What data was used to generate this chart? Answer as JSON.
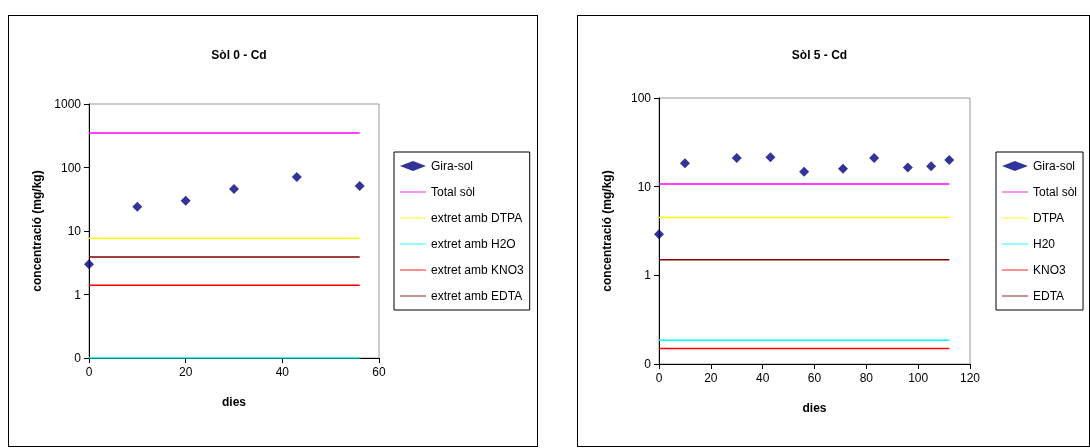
{
  "chart_data": [
    {
      "type": "scatter",
      "title": "Sòl 0 - Cd",
      "xlabel": "dies",
      "ylabel": "concentració (mg/kg)",
      "log": "y",
      "grid": false,
      "legend": "right",
      "xlim": [
        0,
        60
      ],
      "xticks": [
        0,
        20,
        40,
        60
      ],
      "ylim": [
        0.1,
        1000
      ],
      "yticks": [
        {
          "value": 0.1,
          "label": "0"
        },
        1,
        10,
        100,
        1000
      ],
      "series": [
        {
          "name": "Gira-sol",
          "type": "scatter",
          "marker": "diamond",
          "color": "#000080",
          "x": [
            0,
            10,
            20,
            30,
            43,
            56
          ],
          "values": [
            3,
            24,
            30,
            46,
            71,
            51
          ]
        },
        {
          "name": "Total sòl",
          "type": "line",
          "marker": "none",
          "color": "#ff00ff",
          "x": [
            0,
            56
          ],
          "values": [
            350,
            350
          ]
        },
        {
          "name": "extret amb DTPA",
          "type": "line",
          "marker": "none",
          "color": "#ffff00",
          "x": [
            0,
            56
          ],
          "values": [
            7.7,
            7.7
          ]
        },
        {
          "name": "extret amb H2O",
          "type": "line",
          "marker": "none",
          "color": "#00ffff",
          "x": [
            0,
            56
          ],
          "values": [
            0.1,
            0.1
          ]
        },
        {
          "name": "extret amb KNO3",
          "type": "line",
          "marker": "none",
          "color": "#ff0000",
          "x": [
            0,
            56
          ],
          "values": [
            1.4,
            1.4
          ]
        },
        {
          "name": "extret amb EDTA",
          "type": "line",
          "marker": "none",
          "color": "#800000",
          "x": [
            0,
            56
          ],
          "values": [
            3.9,
            3.9
          ]
        }
      ]
    },
    {
      "type": "scatter",
      "title": "Sòl 5 - Cd",
      "xlabel": "dies",
      "ylabel": "concentració (mg/kg)",
      "log": "y",
      "grid": false,
      "legend": "right",
      "xlim": [
        0,
        120
      ],
      "xticks": [
        0,
        20,
        40,
        60,
        80,
        100,
        120
      ],
      "ylim": [
        0.1,
        100
      ],
      "yticks": [
        {
          "value": 0.1,
          "label": "0"
        },
        1,
        10,
        100
      ],
      "series": [
        {
          "name": "Gira-sol",
          "type": "scatter",
          "marker": "diamond",
          "color": "#000080",
          "x": [
            0,
            10,
            30,
            43,
            56,
            71,
            83,
            96,
            105,
            112
          ],
          "values": [
            2.9,
            18.4,
            21,
            21.5,
            14.7,
            15.9,
            21,
            16.4,
            17,
            20
          ]
        },
        {
          "name": "Total sòl",
          "type": "line",
          "marker": "none",
          "color": "#ff00ff",
          "x": [
            0,
            112
          ],
          "values": [
            10.7,
            10.7
          ]
        },
        {
          "name": "DTPA",
          "type": "line",
          "marker": "none",
          "color": "#ffff00",
          "x": [
            0,
            112
          ],
          "values": [
            4.5,
            4.5
          ]
        },
        {
          "name": "H20",
          "type": "line",
          "marker": "none",
          "color": "#00ffff",
          "x": [
            0,
            112
          ],
          "values": [
            0.185,
            0.185
          ]
        },
        {
          "name": "KNO3",
          "type": "line",
          "marker": "none",
          "color": "#ff0000",
          "x": [
            0,
            112
          ],
          "values": [
            0.15,
            0.15
          ]
        },
        {
          "name": "EDTA",
          "type": "line",
          "marker": "none",
          "color": "#800000",
          "x": [
            0,
            112
          ],
          "values": [
            1.5,
            1.5
          ]
        }
      ]
    }
  ]
}
